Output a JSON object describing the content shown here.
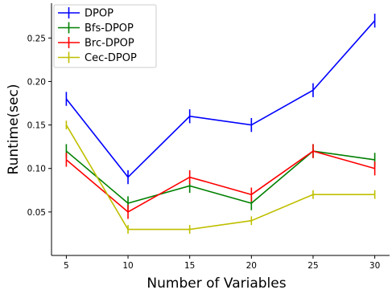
{
  "chart_data": {
    "type": "line",
    "title": "",
    "xlabel": "Number of Variables",
    "ylabel": "Runtime(sec)",
    "x": [
      5,
      10,
      15,
      20,
      25,
      30
    ],
    "x_ticks": [
      "5",
      "10",
      "15",
      "20",
      "25",
      "30"
    ],
    "y_ticks": [
      "0.05",
      "0.10",
      "0.15",
      "0.20",
      "0.25"
    ],
    "y_tick_values": [
      0.05,
      0.1,
      0.15,
      0.2,
      0.25
    ],
    "xlim": [
      3.8,
      31.2
    ],
    "ylim": [
      0.0,
      0.29
    ],
    "grid": false,
    "legend_position": "top-left",
    "error_bars": true,
    "series": [
      {
        "name": "DPOP",
        "color": "#0000ff",
        "values": [
          0.18,
          0.09,
          0.16,
          0.15,
          0.19,
          0.27
        ],
        "errors": [
          0.008,
          0.008,
          0.008,
          0.008,
          0.008,
          0.008
        ]
      },
      {
        "name": "Bfs-DPOP",
        "color": "#008000",
        "values": [
          0.12,
          0.06,
          0.08,
          0.06,
          0.12,
          0.11
        ],
        "errors": [
          0.008,
          0.008,
          0.008,
          0.008,
          0.008,
          0.008
        ]
      },
      {
        "name": "Brc-DPOP",
        "color": "#ff0000",
        "values": [
          0.11,
          0.05,
          0.09,
          0.07,
          0.12,
          0.1
        ],
        "errors": [
          0.008,
          0.008,
          0.008,
          0.008,
          0.008,
          0.008
        ]
      },
      {
        "name": "Cec-DPOP",
        "color": "#bfbf00",
        "values": [
          0.15,
          0.03,
          0.03,
          0.04,
          0.07,
          0.07
        ],
        "errors": [
          0.005,
          0.005,
          0.005,
          0.005,
          0.005,
          0.005
        ]
      }
    ]
  }
}
